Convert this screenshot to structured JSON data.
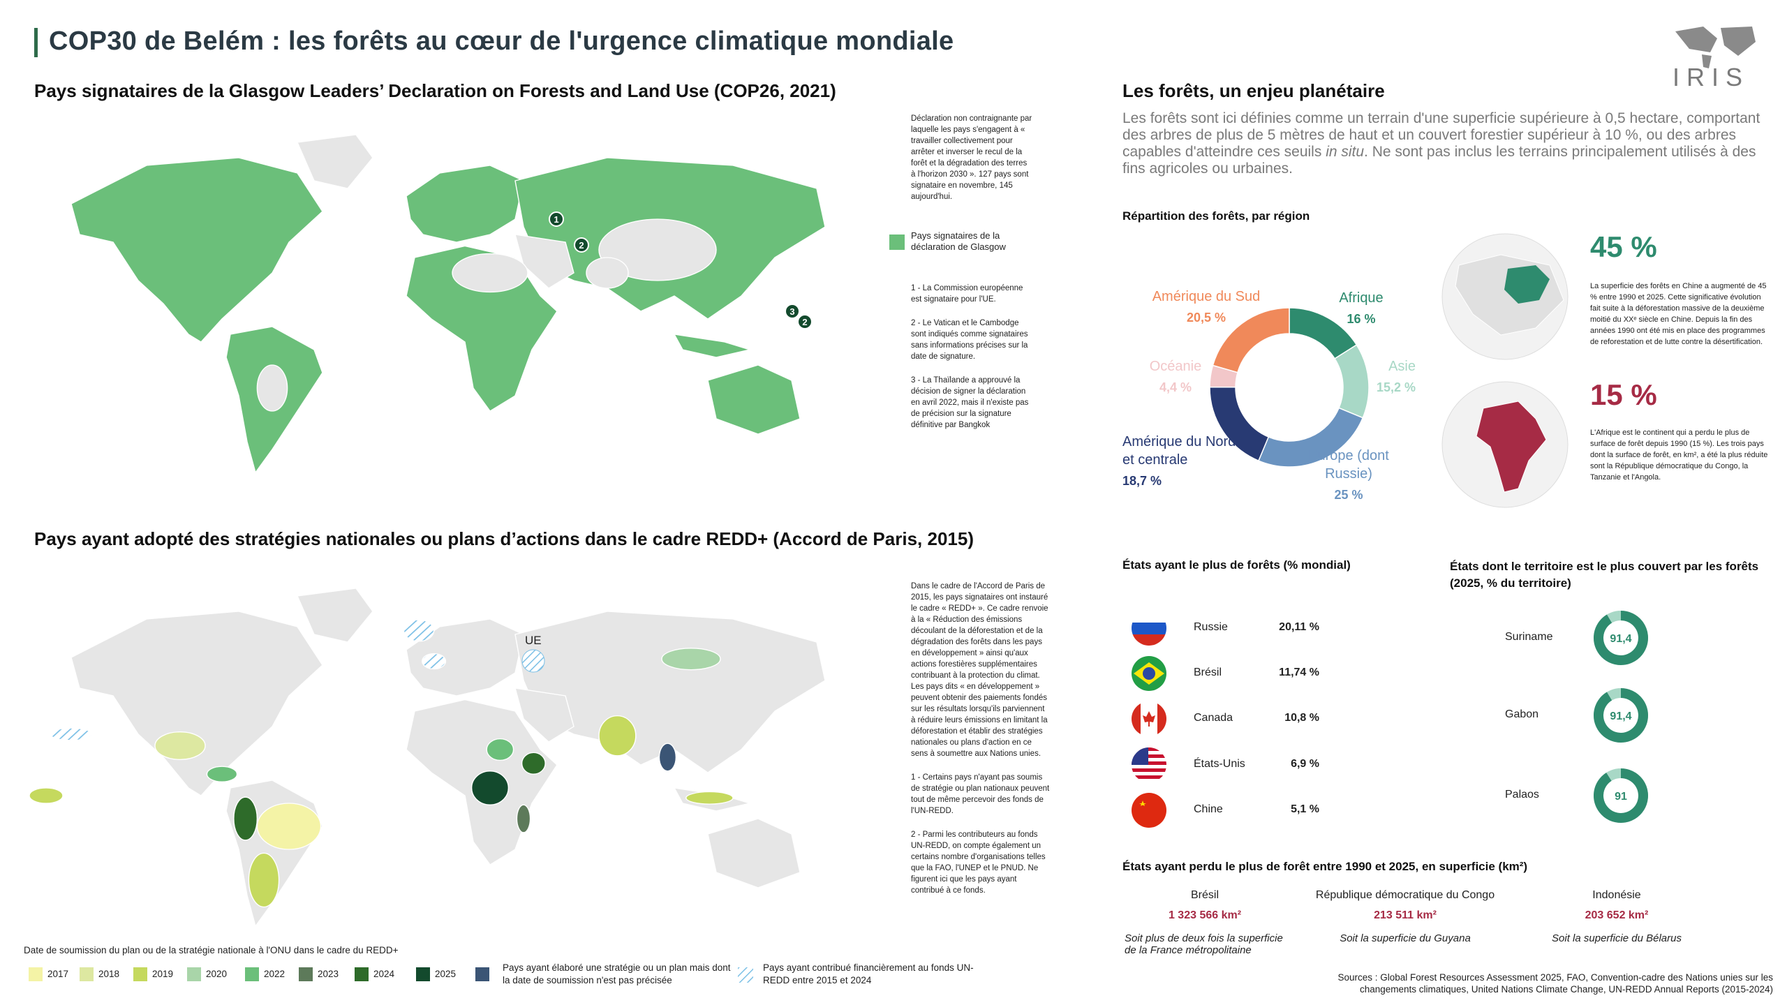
{
  "header": {
    "title": "COP30 de Belém : les forêts au cœur de l'urgence climatique mondiale",
    "logo": "IRIS"
  },
  "glasgow_map": {
    "title": "Pays signataires de la Glasgow Leaders’ Declaration on Forests and Land Use (COP26, 2021)",
    "note": "Déclaration non contraignante par laquelle les pays s'engagent à « travailler collectivement pour arrêter et inverser le recul de la forêt et la dégradation des terres à l'horizon 2030 ». 127 pays sont signataire en novembre, 145 aujourd'hui.",
    "legend": "Pays signataires de la déclaration de Glasgow",
    "footnotes": [
      "1 - La Commission européenne est signataire pour l'UE.",
      "2 - Le Vatican et le Cambodge sont indiqués comme signataires sans informations précises sur la date de signature.",
      "3 - La Thaïlande a approuvé la décision de signer la déclaration en avril 2022, mais il n'existe pas de précision sur la signature définitive par Bangkok"
    ],
    "markers": [
      "1",
      "2",
      "3",
      "2"
    ]
  },
  "redd_map": {
    "title": "Pays ayant adopté des stratégies nationales ou plans d’actions dans le cadre REDD+ (Accord de Paris, 2015)",
    "note": "Dans le cadre de l'Accord de Paris de 2015, les pays signataires ont instauré le cadre « REDD+ ». Ce cadre renvoie à la « Réduction des émissions découlant de la déforestation et de la dégradation des forêts dans les pays en développement » ainsi qu'aux actions forestières supplémentaires contribuant à la protection du climat. Les pays dits « en développement » peuvent obtenir des paiements fondés sur les résultats lorsqu'ils parviennent à réduire leurs émissions en limitant la déforestation et établir des stratégies nationales ou plans d'action en ce sens à soumettre aux Nations unies.",
    "footnotes": [
      "1 - Certains pays n'ayant pas soumis de stratégie ou plan nationaux peuvent tout de même percevoir des fonds de l'UN-REDD.",
      "2 - Parmi les contributeurs au fonds UN-REDD, on compte également un certains nombre d'organisations telles que la FAO, l'UNEP et le PNUD. Ne figurent ici que les pays ayant contribué à ce fonds."
    ],
    "region_label": "UE",
    "legend_title": "Date de soumission du plan ou de la stratégie nationale à l'ONU dans le cadre du REDD+",
    "legend": [
      {
        "label": "2017",
        "color": "#f4f3a6"
      },
      {
        "label": "2018",
        "color": "#dde8a1"
      },
      {
        "label": "2019",
        "color": "#c5d95e"
      },
      {
        "label": "2020",
        "color": "#a9d5a9"
      },
      {
        "label": "2022",
        "color": "#6bbf7a"
      },
      {
        "label": "2023",
        "color": "#5d7a5a"
      },
      {
        "label": "2024",
        "color": "#2e6b2a"
      },
      {
        "label": "2025",
        "color": "#134a2d"
      }
    ],
    "legend_unknown": "Pays ayant élaboré une stratégie ou un plan mais dont la date de soumission n'est pas précisée",
    "legend_funding": "Pays ayant contribué financièrement au fonds UN-REDD entre 2015 et 2024"
  },
  "forests": {
    "title": "Les forêts, un enjeu planétaire",
    "definition_start": "Les forêts sont ici définies comme un terrain d'une superficie supérieure à 0,5 hectare, comportant des arbres de plus de 5 mètres de haut et un couvert forestier supérieur à 10 %, ou des arbres capables d'atteindre ces seuils ",
    "definition_italic": "in situ",
    "definition_end": ". Ne sont pas inclus les terrains principalement utilisés à des fins agricoles ou urbaines."
  },
  "chart_data": {
    "type": "pie",
    "title": "Répartition des forêts, par région",
    "categories": [
      "Afrique",
      "Asie",
      "Europe (dont Russie)",
      "Amérique du Nord et centrale",
      "Océanie",
      "Amérique du Sud"
    ],
    "values": [
      16,
      15.2,
      25,
      18.7,
      4.4,
      20.5
    ],
    "value_labels": [
      "16 %",
      "15,2 %",
      "25 %",
      "18,7 %",
      "4,4 %",
      "20,5 %"
    ],
    "colors": [
      "#2e8b6e",
      "#a8d8c6",
      "#6a93c0",
      "#283a73",
      "#f2c7c9",
      "#f0895a"
    ]
  },
  "highlights": [
    {
      "value": "45 %",
      "text": "La superficie des forêts en Chine a augmenté de 45 % entre 1990 et 2025. Cette significative évolution fait suite à la déforestation massive de la deuxième moitié du XXᵉ siècle en Chine. Depuis la fin des années 1990 ont été mis en place des programmes de reforestation et de lutte contre la désertification."
    },
    {
      "value": "15 %",
      "text": "L'Afrique est le continent qui a perdu le plus de surface de forêt depuis 1990 (15 %). Les trois pays dont la surface de forêt, en km², a été la plus réduite sont la République démocratique du Congo, la Tanzanie et l'Angola."
    }
  ],
  "top_forests": {
    "title": "États ayant le plus de forêts (% mondial)",
    "rows": [
      {
        "country": "Russie",
        "share": "20,11 %"
      },
      {
        "country": "Brésil",
        "share": "11,74 %"
      },
      {
        "country": "Canada",
        "share": "10,8 %"
      },
      {
        "country": "États-Unis",
        "share": "6,9 %"
      },
      {
        "country": "Chine",
        "share": "5,1 %"
      }
    ]
  },
  "coverage": {
    "title": "États dont le territoire est le plus couvert par les forêts (2025, % du territoire)",
    "rows": [
      {
        "country": "Suriname",
        "value": 91.4,
        "label": "91,4"
      },
      {
        "country": "Gabon",
        "value": 91.4,
        "label": "91,4"
      },
      {
        "country": "Palaos",
        "value": 91,
        "label": "91"
      }
    ]
  },
  "losses": {
    "title": "États ayant perdu le plus de forêt entre 1990 et 2025, en superficie (km²)",
    "items": [
      {
        "country": "Brésil",
        "area": "1 323 566 km²",
        "comparison": "Soit plus de deux fois la superficie de la France métropolitaine"
      },
      {
        "country": "République démocratique du Congo",
        "area": "213 511 km²",
        "comparison": "Soit la superficie du Guyana"
      },
      {
        "country": "Indonésie",
        "area": "203 652 km²",
        "comparison": "Soit la superficie du Bélarus"
      }
    ]
  },
  "sources": "Sources : Global Forest Resources Assessment 2025, FAO, Convention-cadre des Nations unies sur les changements climatiques, United Nations Climate Change, UN-REDD Annual Reports (2015-2024)"
}
